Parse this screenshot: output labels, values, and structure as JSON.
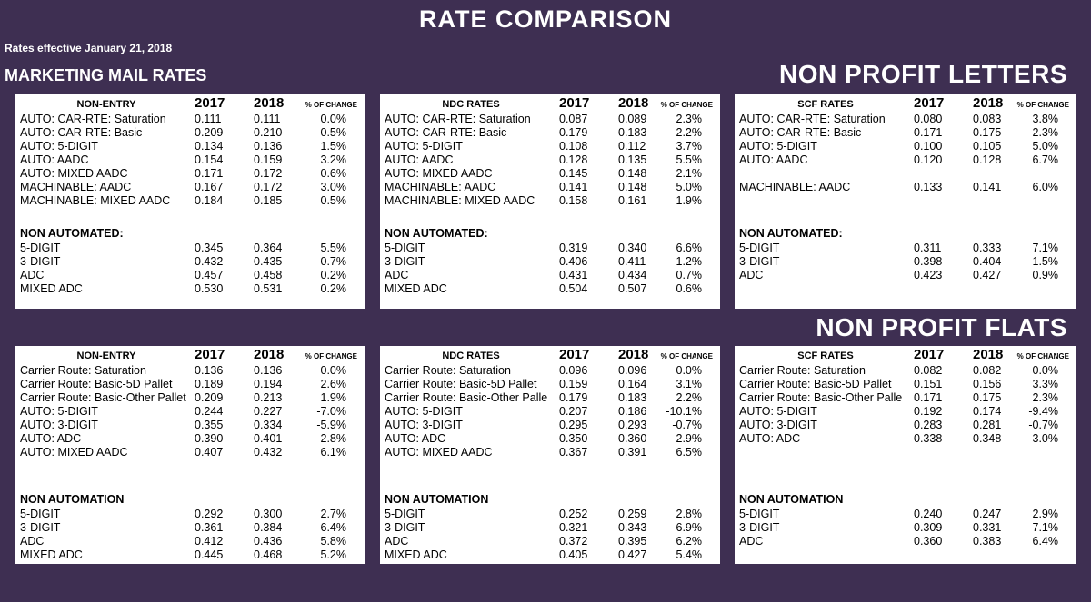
{
  "title": "RATE COMPARISON",
  "subtitle": "Rates effective January 21, 2018",
  "section_left": "MARKETING MAIL RATES",
  "section_letters": "NON PROFIT LETTERS",
  "section_flats": "NON PROFIT FLATS",
  "columns": {
    "y2017": "2017",
    "y2018": "2018",
    "change": "% OF CHANGE"
  },
  "panels": [
    {
      "header": "NON-ENTRY",
      "rows": [
        {
          "label": "AUTO:   CAR-RTE: Saturation",
          "v2017": "0.111",
          "v2018": "0.111",
          "change": "0.0%"
        },
        {
          "label": "AUTO:   CAR-RTE: Basic",
          "v2017": "0.209",
          "v2018": "0.210",
          "change": "0.5%"
        },
        {
          "label": "AUTO:   5-DIGIT",
          "v2017": "0.134",
          "v2018": "0.136",
          "change": "1.5%"
        },
        {
          "label": "AUTO:   AADC",
          "v2017": "0.154",
          "v2018": "0.159",
          "change": "3.2%"
        },
        {
          "label": "AUTO:   MIXED AADC",
          "v2017": "0.171",
          "v2018": "0.172",
          "change": "0.6%"
        },
        {
          "label": "MACHINABLE:  AADC",
          "v2017": "0.167",
          "v2018": "0.172",
          "change": "3.0%"
        },
        {
          "label": "MACHINABLE:  MIXED AADC",
          "v2017": "0.184",
          "v2018": "0.185",
          "change": "0.5%"
        }
      ],
      "subheader": "NON AUTOMATED:",
      "subrows": [
        {
          "label": "5-DIGIT",
          "v2017": "0.345",
          "v2018": "0.364",
          "change": "5.5%"
        },
        {
          "label": "3-DIGIT",
          "v2017": "0.432",
          "v2018": "0.435",
          "change": "0.7%"
        },
        {
          "label": "ADC",
          "v2017": "0.457",
          "v2018": "0.458",
          "change": "0.2%"
        },
        {
          "label": "MIXED ADC",
          "v2017": "0.530",
          "v2018": "0.531",
          "change": "0.2%"
        }
      ]
    },
    {
      "header": "NDC RATES",
      "rows": [
        {
          "label": "AUTO:   CAR-RTE: Saturation",
          "v2017": "0.087",
          "v2018": "0.089",
          "change": "2.3%"
        },
        {
          "label": "AUTO:   CAR-RTE: Basic",
          "v2017": "0.179",
          "v2018": "0.183",
          "change": "2.2%"
        },
        {
          "label": "AUTO:   5-DIGIT",
          "v2017": "0.108",
          "v2018": "0.112",
          "change": "3.7%"
        },
        {
          "label": "AUTO:   AADC",
          "v2017": "0.128",
          "v2018": "0.135",
          "change": "5.5%"
        },
        {
          "label": "AUTO:   MIXED AADC",
          "v2017": "0.145",
          "v2018": "0.148",
          "change": "2.1%"
        },
        {
          "label": "MACHINABLE:  AADC",
          "v2017": "0.141",
          "v2018": "0.148",
          "change": "5.0%"
        },
        {
          "label": "MACHINABLE:  MIXED AADC",
          "v2017": "0.158",
          "v2018": "0.161",
          "change": "1.9%"
        }
      ],
      "subheader": "NON AUTOMATED:",
      "subrows": [
        {
          "label": "5-DIGIT",
          "v2017": "0.319",
          "v2018": "0.340",
          "change": "6.6%"
        },
        {
          "label": "3-DIGIT",
          "v2017": "0.406",
          "v2018": "0.411",
          "change": "1.2%"
        },
        {
          "label": "ADC",
          "v2017": "0.431",
          "v2018": "0.434",
          "change": "0.7%"
        },
        {
          "label": "MIXED ADC",
          "v2017": "0.504",
          "v2018": "0.507",
          "change": "0.6%"
        }
      ]
    },
    {
      "header": "SCF RATES",
      "rows": [
        {
          "label": "AUTO:   CAR-RTE: Saturation",
          "v2017": "0.080",
          "v2018": "0.083",
          "change": "3.8%"
        },
        {
          "label": "AUTO:   CAR-RTE: Basic",
          "v2017": "0.171",
          "v2018": "0.175",
          "change": "2.3%"
        },
        {
          "label": "AUTO:   5-DIGIT",
          "v2017": "0.100",
          "v2018": "0.105",
          "change": "5.0%"
        },
        {
          "label": "AUTO:   AADC",
          "v2017": "0.120",
          "v2018": "0.128",
          "change": "6.7%"
        },
        {
          "label": "",
          "v2017": "",
          "v2018": "",
          "change": ""
        },
        {
          "label": "MACHINABLE:  AADC",
          "v2017": "0.133",
          "v2018": "0.141",
          "change": "6.0%"
        },
        {
          "label": "",
          "v2017": "",
          "v2018": "",
          "change": ""
        }
      ],
      "subheader": "NON AUTOMATED:",
      "subrows": [
        {
          "label": "5-DIGIT",
          "v2017": "0.311",
          "v2018": "0.333",
          "change": "7.1%"
        },
        {
          "label": "3-DIGIT",
          "v2017": "0.398",
          "v2018": "0.404",
          "change": "1.5%"
        },
        {
          "label": "ADC",
          "v2017": "0.423",
          "v2018": "0.427",
          "change": "0.9%"
        }
      ]
    },
    {
      "header": "NON-ENTRY",
      "rows": [
        {
          "label": "Carrier Route: Saturation",
          "v2017": "0.136",
          "v2018": "0.136",
          "change": "0.0%"
        },
        {
          "label": "Carrier Route: Basic-5D Pallet",
          "v2017": "0.189",
          "v2018": "0.194",
          "change": "2.6%"
        },
        {
          "label": "Carrier Route: Basic-Other Pallet",
          "v2017": "0.209",
          "v2018": "0.213",
          "change": "1.9%"
        },
        {
          "label": "AUTO:    5-DIGIT",
          "v2017": "0.244",
          "v2018": "0.227",
          "change": "-7.0%"
        },
        {
          "label": "AUTO:    3-DIGIT",
          "v2017": "0.355",
          "v2018": "0.334",
          "change": "-5.9%"
        },
        {
          "label": "AUTO:    ADC",
          "v2017": "0.390",
          "v2018": "0.401",
          "change": "2.8%"
        },
        {
          "label": "AUTO:    MIXED AADC",
          "v2017": "0.407",
          "v2018": "0.432",
          "change": "6.1%"
        }
      ],
      "subheader": "NON AUTOMATION",
      "subrows": [
        {
          "label": "5-DIGIT",
          "v2017": "0.292",
          "v2018": "0.300",
          "change": "2.7%"
        },
        {
          "label": "3-DIGIT",
          "v2017": "0.361",
          "v2018": "0.384",
          "change": "6.4%"
        },
        {
          "label": "ADC",
          "v2017": "0.412",
          "v2018": "0.436",
          "change": "5.8%"
        },
        {
          "label": "MIXED ADC",
          "v2017": "0.445",
          "v2018": "0.468",
          "change": "5.2%"
        }
      ]
    },
    {
      "header": "NDC RATES",
      "rows": [
        {
          "label": "Carrier Route: Saturation",
          "v2017": "0.096",
          "v2018": "0.096",
          "change": "0.0%"
        },
        {
          "label": "Carrier Route: Basic-5D Pallet",
          "v2017": "0.159",
          "v2018": "0.164",
          "change": "3.1%"
        },
        {
          "label": "Carrier Route: Basic-Other Palle",
          "v2017": "0.179",
          "v2018": "0.183",
          "change": "2.2%"
        },
        {
          "label": "AUTO:    5-DIGIT",
          "v2017": "0.207",
          "v2018": "0.186",
          "change": "-10.1%"
        },
        {
          "label": "AUTO:    3-DIGIT",
          "v2017": "0.295",
          "v2018": "0.293",
          "change": "-0.7%"
        },
        {
          "label": "AUTO:    ADC",
          "v2017": "0.350",
          "v2018": "0.360",
          "change": "2.9%"
        },
        {
          "label": "AUTO:    MIXED AADC",
          "v2017": "0.367",
          "v2018": "0.391",
          "change": "6.5%"
        }
      ],
      "subheader": "NON AUTOMATION",
      "subrows": [
        {
          "label": "5-DIGIT",
          "v2017": "0.252",
          "v2018": "0.259",
          "change": "2.8%"
        },
        {
          "label": "3-DIGIT",
          "v2017": "0.321",
          "v2018": "0.343",
          "change": "6.9%"
        },
        {
          "label": "ADC",
          "v2017": "0.372",
          "v2018": "0.395",
          "change": "6.2%"
        },
        {
          "label": "MIXED ADC",
          "v2017": "0.405",
          "v2018": "0.427",
          "change": "5.4%"
        }
      ]
    },
    {
      "header": "SCF RATES",
      "rows": [
        {
          "label": "Carrier Route: Saturation",
          "v2017": "0.082",
          "v2018": "0.082",
          "change": "0.0%"
        },
        {
          "label": "Carrier Route: Basic-5D Pallet",
          "v2017": "0.151",
          "v2018": "0.156",
          "change": "3.3%"
        },
        {
          "label": "Carrier Route: Basic-Other Palle",
          "v2017": "0.171",
          "v2018": "0.175",
          "change": "2.3%"
        },
        {
          "label": "AUTO:    5-DIGIT",
          "v2017": "0.192",
          "v2018": "0.174",
          "change": "-9.4%"
        },
        {
          "label": "AUTO:    3-DIGIT",
          "v2017": "0.283",
          "v2018": "0.281",
          "change": "-0.7%"
        },
        {
          "label": "AUTO:    ADC",
          "v2017": "0.338",
          "v2018": "0.348",
          "change": "3.0%"
        },
        {
          "label": "",
          "v2017": "",
          "v2018": "",
          "change": ""
        }
      ],
      "subheader": "NON AUTOMATION",
      "subrows": [
        {
          "label": "5-DIGIT",
          "v2017": "0.240",
          "v2018": "0.247",
          "change": "2.9%"
        },
        {
          "label": "3-DIGIT",
          "v2017": "0.309",
          "v2018": "0.331",
          "change": "7.1%"
        },
        {
          "label": "ADC",
          "v2017": "0.360",
          "v2018": "0.383",
          "change": "6.4%"
        }
      ]
    }
  ]
}
